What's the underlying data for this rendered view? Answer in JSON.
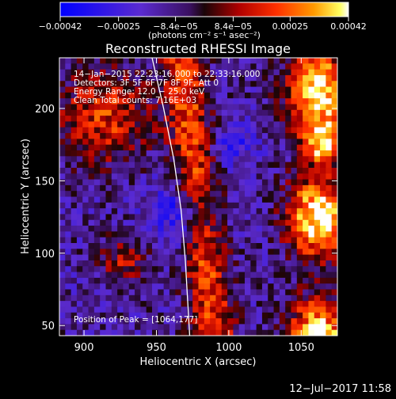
{
  "chart_data": {
    "type": "heatmap",
    "title": "Reconstructed RHESSI Image",
    "xlabel": "Heliocentric X (arcsec)",
    "ylabel": "Heliocentric Y (arcsec)",
    "xlim": [
      883,
      1075
    ],
    "ylim": [
      43,
      235
    ],
    "x_ticks": [
      {
        "value": 900,
        "label": "900"
      },
      {
        "value": 950,
        "label": "950"
      },
      {
        "value": 1000,
        "label": "1000"
      },
      {
        "value": 1050,
        "label": "1050"
      }
    ],
    "y_ticks": [
      {
        "value": 50,
        "label": "50"
      },
      {
        "value": 100,
        "label": "100"
      },
      {
        "value": 150,
        "label": "150"
      },
      {
        "value": 200,
        "label": "200"
      }
    ],
    "colorbar": {
      "min": -0.00042,
      "max": 0.00042,
      "label": "(photons cm⁻² s⁻¹ asec⁻²)",
      "ticks": [
        {
          "value": -0.00042,
          "label": "−0.00042"
        },
        {
          "value": -0.00025,
          "label": "−0.00025"
        },
        {
          "value": -8.4e-05,
          "label": "−8.4e−05"
        },
        {
          "value": 8.4e-05,
          "label": "8.4e−05"
        },
        {
          "value": 0.00025,
          "label": "0.00025"
        },
        {
          "value": 0.00042,
          "label": "0.00042"
        }
      ]
    },
    "annotations": [
      "14−Jan−2015 22:23:16.000 to 22:33:16.000",
      "Detectors: 3F 5F 6F 7F 8F 9F, Att 0",
      "Energy Range: 12.0 − 25.0 keV",
      "Clean     Total counts: 7.16E+03"
    ],
    "peak_label": "Position of Peak = [1064,177]",
    "peak_position": [
      1064,
      177
    ],
    "limb": [
      [
        947,
        235
      ],
      [
        955,
        200
      ],
      [
        962,
        165
      ],
      [
        967,
        130
      ],
      [
        970,
        95
      ],
      [
        972,
        60
      ],
      [
        973,
        43
      ]
    ],
    "grid": false,
    "colormap": "blue-purple-red-orange-yellow-white"
  },
  "footer": {
    "date": "12−Jul−2017 11:58"
  }
}
